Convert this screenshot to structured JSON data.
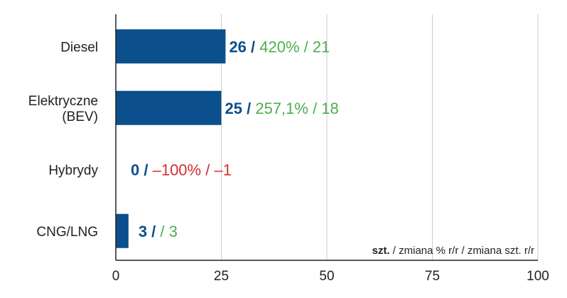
{
  "chart_data": {
    "type": "bar",
    "orientation": "horizontal",
    "categories": [
      [
        "Diesel"
      ],
      [
        "Elektryczne",
        "(BEV)"
      ],
      [
        "Hybrydy"
      ],
      [
        "CNG/LNG"
      ]
    ],
    "values": [
      26,
      25,
      0,
      3
    ],
    "labels": [
      {
        "units": "26",
        "pct": "420%",
        "delta": "21",
        "sign": "positive"
      },
      {
        "units": "25",
        "pct": "257,1%",
        "delta": "18",
        "sign": "positive"
      },
      {
        "units": "0",
        "pct": "–100%",
        "delta": "–1",
        "sign": "negative"
      },
      {
        "units": "3",
        "pct": "",
        "delta": "3",
        "sign": "positive"
      }
    ],
    "label_separator": " / ",
    "xlim": [
      0,
      100
    ],
    "xticks": [
      0,
      25,
      50,
      75,
      100
    ],
    "grid": true,
    "unit_note": {
      "bold": "szt.",
      "rest": " / zmiana % r/r / zmiana szt. r/r"
    },
    "colors": {
      "bar": "#0b4f8c",
      "units_text": "#0b4f8c",
      "positive": "#4caf50",
      "negative": "#d32f2f",
      "grid": "#cccccc",
      "axis": "#222222"
    }
  }
}
